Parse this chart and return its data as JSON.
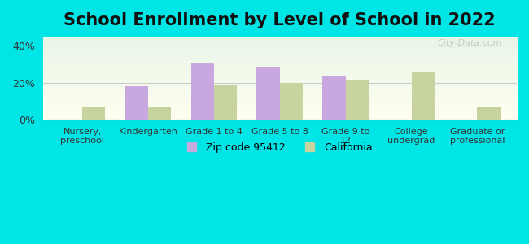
{
  "title": "School Enrollment by Level of School in 2022",
  "categories": [
    "Nursery,\npreschool",
    "Kindergarten",
    "Grade 1 to 4",
    "Grade 5 to 8",
    "Grade 9 to\n12",
    "College\nundergrad",
    "Graduate or\nprofessional"
  ],
  "zip_values": [
    0.0,
    18.0,
    31.0,
    28.5,
    24.0,
    0.0,
    0.0
  ],
  "ca_values": [
    7.0,
    6.5,
    19.0,
    20.0,
    21.5,
    25.5,
    7.0
  ],
  "zip_color": "#c9a8e0",
  "ca_color": "#c8d4a0",
  "background_color": "#00e5e5",
  "ylim": [
    0,
    45
  ],
  "yticks": [
    0,
    20,
    40
  ],
  "ytick_labels": [
    "0%",
    "20%",
    "40%"
  ],
  "legend_zip_label": "Zip code 95412",
  "legend_ca_label": "California",
  "watermark": "City-Data.com",
  "title_fontsize": 15,
  "bar_width": 0.35
}
